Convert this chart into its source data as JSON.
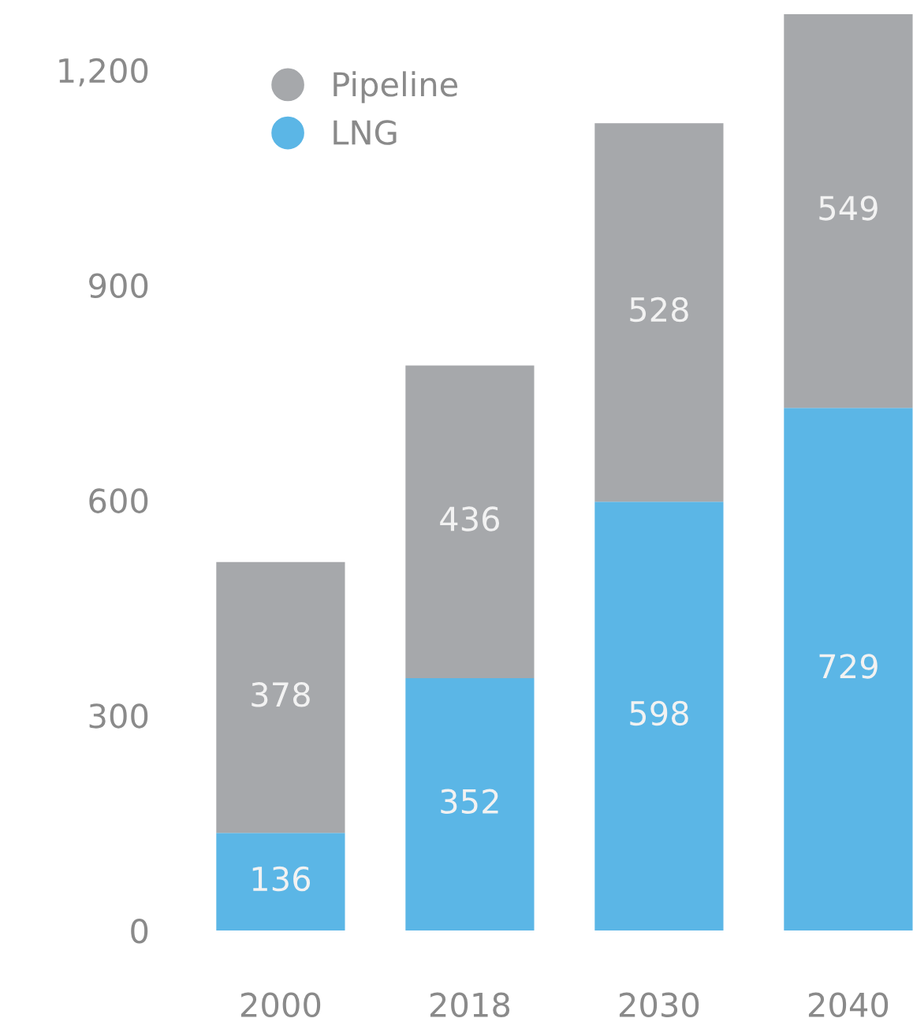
{
  "chart_data": {
    "type": "bar",
    "stacked": true,
    "categories": [
      "2000",
      "2018",
      "2030",
      "2040"
    ],
    "series": [
      {
        "name": "LNG",
        "color": "#5bb6e6",
        "values": [
          136,
          352,
          598,
          729
        ]
      },
      {
        "name": "Pipeline",
        "color": "#a6a8ab",
        "values": [
          378,
          436,
          528,
          549
        ]
      }
    ],
    "ylim": [
      0,
      1278
    ],
    "yticks": [
      0,
      300,
      600,
      900,
      {
        "value": 1200,
        "label": "1,200"
      }
    ],
    "data_labels": true,
    "legend": "top left",
    "grid": false
  }
}
